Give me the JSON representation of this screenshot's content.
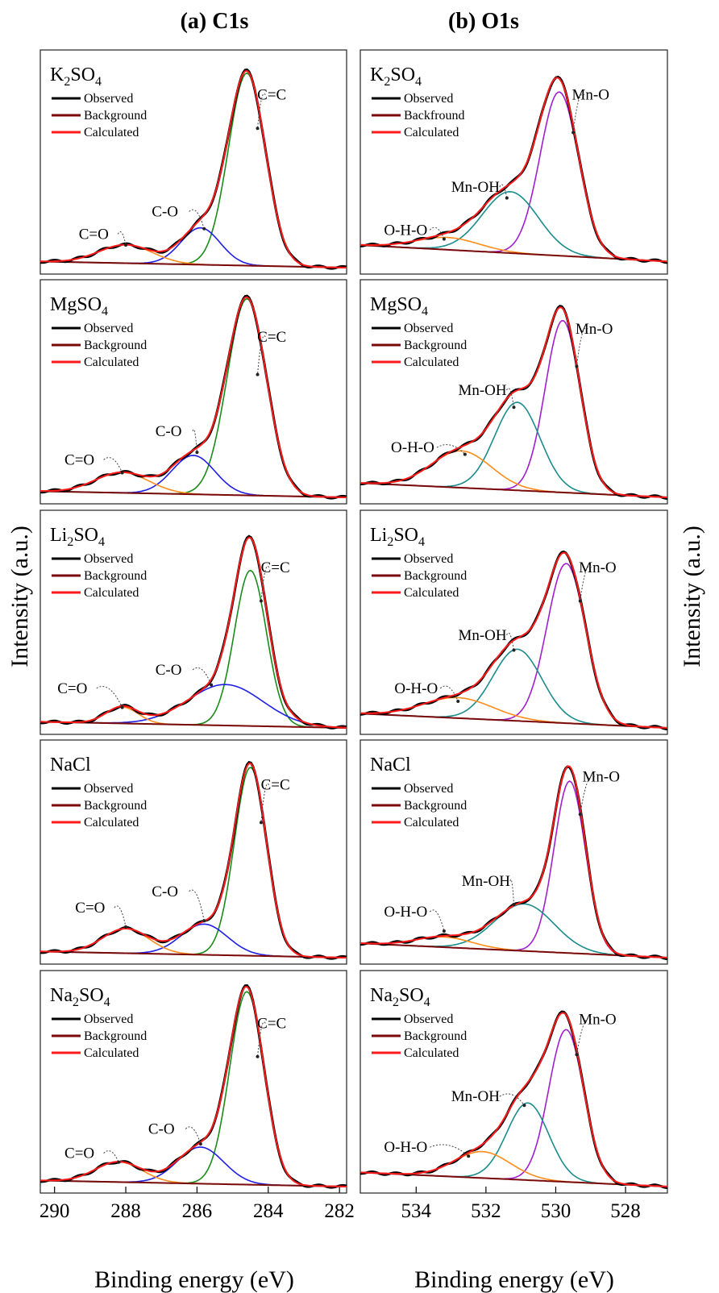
{
  "figure": {
    "y_axis_label": "Intensity (a.u.)",
    "columns": [
      {
        "title": "(a) C1s",
        "xlabel": "Binding energy (eV)",
        "xlim": [
          290.4,
          281.8
        ],
        "ticks": [
          "290",
          "288",
          "286",
          "284",
          "282"
        ]
      },
      {
        "title": "(b) O1s",
        "xlabel": "Binding energy (eV)",
        "xlim": [
          535.6,
          526.8
        ],
        "ticks": [
          "534",
          "532",
          "530",
          "528"
        ]
      }
    ]
  },
  "colors": {
    "observed": "#000000",
    "background": "#7a0a0a",
    "calculated": "#ff1a1a",
    "C=C": "#1a8c1a",
    "C-O": "#1f1fe6",
    "C=O": "#ff8c1a",
    "Mn-O": "#a020d0",
    "Mn-OH": "#1a8c8c",
    "O-H-O": "#ff8c1a"
  },
  "chart_data": [
    {
      "type": "line",
      "column": 0,
      "row": 0,
      "sample": "K2SO4",
      "legend": [
        "Observed",
        "Background",
        "Calculated"
      ],
      "bg": [
        0.03,
        0.0
      ],
      "peaks": [
        {
          "label": "C=C",
          "center": 284.6,
          "height": 0.94,
          "sigma": 0.52,
          "label_at": [
            283.9,
            0.82
          ],
          "arrow_to": [
            284.3,
            0.68
          ]
        },
        {
          "label": "C-O",
          "center": 285.9,
          "height": 0.18,
          "sigma": 0.55,
          "label_at": [
            286.9,
            0.25
          ],
          "arrow_to": [
            285.8,
            0.19
          ]
        },
        {
          "label": "C=O",
          "center": 288.0,
          "height": 0.09,
          "sigma": 0.75,
          "label_at": [
            288.9,
            0.14
          ],
          "arrow_to": [
            288.0,
            0.11
          ]
        }
      ]
    },
    {
      "type": "line",
      "column": 0,
      "row": 1,
      "sample": "MgSO4",
      "legend": [
        "Observed",
        "Background",
        "Calculated"
      ],
      "bg": [
        0.03,
        0.0
      ],
      "peaks": [
        {
          "label": "C=C",
          "center": 284.6,
          "height": 0.96,
          "sigma": 0.55,
          "label_at": [
            283.9,
            0.76
          ],
          "arrow_to": [
            284.3,
            0.6
          ]
        },
        {
          "label": "C-O",
          "center": 286.1,
          "height": 0.19,
          "sigma": 0.6,
          "label_at": [
            286.8,
            0.3
          ],
          "arrow_to": [
            286.0,
            0.22
          ]
        },
        {
          "label": "C=O",
          "center": 288.1,
          "height": 0.1,
          "sigma": 0.75,
          "label_at": [
            289.3,
            0.16
          ],
          "arrow_to": [
            288.1,
            0.12
          ]
        }
      ]
    },
    {
      "type": "line",
      "column": 0,
      "row": 2,
      "sample": "Li2SO4",
      "legend": [
        "Observed",
        "Background",
        "Calculated"
      ],
      "bg": [
        0.03,
        0.0
      ],
      "peaks": [
        {
          "label": "C=C",
          "center": 284.5,
          "height": 0.76,
          "sigma": 0.45,
          "label_at": [
            283.8,
            0.76
          ],
          "arrow_to": [
            284.2,
            0.62
          ]
        },
        {
          "label": "C-O",
          "center": 285.2,
          "height": 0.2,
          "sigma": 1.05,
          "label_at": [
            286.8,
            0.26
          ],
          "arrow_to": [
            285.6,
            0.21
          ]
        },
        {
          "label": "C=O",
          "center": 288.1,
          "height": 0.08,
          "sigma": 0.45,
          "label_at": [
            289.5,
            0.17
          ],
          "arrow_to": [
            288.1,
            0.1
          ]
        }
      ]
    },
    {
      "type": "line",
      "column": 0,
      "row": 3,
      "sample": "NaCl",
      "legend": [
        "Observed",
        "Background",
        "Calculated"
      ],
      "bg": [
        0.03,
        0.0
      ],
      "peaks": [
        {
          "label": "C=C",
          "center": 284.5,
          "height": 0.92,
          "sigma": 0.45,
          "label_at": [
            283.8,
            0.82
          ],
          "arrow_to": [
            284.2,
            0.66
          ]
        },
        {
          "label": "C-O",
          "center": 285.8,
          "height": 0.15,
          "sigma": 0.65,
          "label_at": [
            286.9,
            0.3
          ],
          "arrow_to": [
            285.8,
            0.18
          ]
        },
        {
          "label": "C=O",
          "center": 288.0,
          "height": 0.12,
          "sigma": 0.65,
          "label_at": [
            289.0,
            0.22
          ],
          "arrow_to": [
            288.0,
            0.15
          ]
        }
      ]
    },
    {
      "type": "line",
      "column": 0,
      "row": 4,
      "sample": "Na2SO4",
      "legend": [
        "Observed",
        "Background",
        "Calculated"
      ],
      "bg": [
        0.03,
        0.0
      ],
      "peaks": [
        {
          "label": "C=C",
          "center": 284.6,
          "height": 0.95,
          "sigma": 0.48,
          "label_at": [
            283.9,
            0.78
          ],
          "arrow_to": [
            284.3,
            0.64
          ]
        },
        {
          "label": "C-O",
          "center": 285.9,
          "height": 0.18,
          "sigma": 0.65,
          "label_at": [
            287.0,
            0.26
          ],
          "arrow_to": [
            285.9,
            0.21
          ]
        },
        {
          "label": "C=O",
          "center": 288.2,
          "height": 0.1,
          "sigma": 0.65,
          "label_at": [
            289.3,
            0.14
          ],
          "arrow_to": [
            288.2,
            0.12
          ]
        }
      ]
    },
    {
      "type": "line",
      "column": 1,
      "row": 0,
      "sample": "K2SO4",
      "legend": [
        "Observed",
        "Backfround",
        "Calculated"
      ],
      "bg": [
        0.11,
        0.03
      ],
      "peaks": [
        {
          "label": "Mn-O",
          "center": 529.9,
          "height": 0.8,
          "sigma": 0.55,
          "label_at": [
            529.0,
            0.82
          ],
          "arrow_to": [
            529.5,
            0.66
          ]
        },
        {
          "label": "Mn-OH",
          "center": 531.3,
          "height": 0.3,
          "sigma": 0.8,
          "label_at": [
            532.3,
            0.37
          ],
          "arrow_to": [
            531.4,
            0.34
          ]
        },
        {
          "label": "O-H-O",
          "center": 533.1,
          "height": 0.06,
          "sigma": 0.9,
          "label_at": [
            534.3,
            0.16
          ],
          "arrow_to": [
            533.2,
            0.14
          ]
        }
      ]
    },
    {
      "type": "line",
      "column": 1,
      "row": 1,
      "sample": "MgSO4",
      "legend": [
        "Observed",
        "Background",
        "Calculated"
      ],
      "bg": [
        0.07,
        0.0
      ],
      "peaks": [
        {
          "label": "Mn-O",
          "center": 529.8,
          "height": 0.84,
          "sigma": 0.5,
          "label_at": [
            528.9,
            0.8
          ],
          "arrow_to": [
            529.4,
            0.64
          ]
        },
        {
          "label": "Mn-OH",
          "center": 531.1,
          "height": 0.43,
          "sigma": 0.65,
          "label_at": [
            532.1,
            0.5
          ],
          "arrow_to": [
            531.2,
            0.44
          ]
        },
        {
          "label": "O-H-O",
          "center": 532.7,
          "height": 0.18,
          "sigma": 0.85,
          "label_at": [
            534.1,
            0.22
          ],
          "arrow_to": [
            532.6,
            0.21
          ]
        }
      ]
    },
    {
      "type": "line",
      "column": 1,
      "row": 2,
      "sample": "Li2SO4",
      "legend": [
        "Observed",
        "Background",
        "Calculated"
      ],
      "bg": [
        0.07,
        0.0
      ],
      "peaks": [
        {
          "label": "Mn-O",
          "center": 529.7,
          "height": 0.78,
          "sigma": 0.55,
          "label_at": [
            528.8,
            0.76
          ],
          "arrow_to": [
            529.3,
            0.62
          ]
        },
        {
          "label": "Mn-OH",
          "center": 531.1,
          "height": 0.35,
          "sigma": 0.7,
          "label_at": [
            532.1,
            0.43
          ],
          "arrow_to": [
            531.2,
            0.38
          ]
        },
        {
          "label": "O-H-O",
          "center": 532.8,
          "height": 0.1,
          "sigma": 1.0,
          "label_at": [
            534.0,
            0.17
          ],
          "arrow_to": [
            532.8,
            0.13
          ]
        }
      ]
    },
    {
      "type": "line",
      "column": 1,
      "row": 3,
      "sample": "NaCl",
      "legend": [
        "Observed",
        "Background",
        "Calculated"
      ],
      "bg": [
        0.07,
        0.0
      ],
      "peaks": [
        {
          "label": "Mn-O",
          "center": 529.6,
          "height": 0.84,
          "sigma": 0.45,
          "label_at": [
            528.7,
            0.86
          ],
          "arrow_to": [
            529.3,
            0.7
          ]
        },
        {
          "label": "Mn-OH",
          "center": 530.9,
          "height": 0.23,
          "sigma": 0.85,
          "label_at": [
            532.0,
            0.35
          ],
          "arrow_to": [
            531.2,
            0.26
          ]
        },
        {
          "label": "O-H-O",
          "center": 533.2,
          "height": 0.05,
          "sigma": 0.8,
          "label_at": [
            534.3,
            0.2
          ],
          "arrow_to": [
            533.2,
            0.13
          ]
        }
      ]
    },
    {
      "type": "line",
      "column": 1,
      "row": 4,
      "sample": "Na2SO4",
      "legend": [
        "Observed",
        "Background",
        "Calculated"
      ],
      "bg": [
        0.07,
        0.0
      ],
      "peaks": [
        {
          "label": "Mn-O",
          "center": 529.7,
          "height": 0.75,
          "sigma": 0.5,
          "label_at": [
            528.8,
            0.8
          ],
          "arrow_to": [
            529.4,
            0.65
          ]
        },
        {
          "label": "Mn-OH",
          "center": 530.8,
          "height": 0.38,
          "sigma": 0.6,
          "label_at": [
            532.3,
            0.42
          ],
          "arrow_to": [
            530.9,
            0.4
          ]
        },
        {
          "label": "O-H-O",
          "center": 532.1,
          "height": 0.13,
          "sigma": 0.8,
          "label_at": [
            534.3,
            0.17
          ],
          "arrow_to": [
            532.5,
            0.15
          ]
        }
      ]
    }
  ]
}
